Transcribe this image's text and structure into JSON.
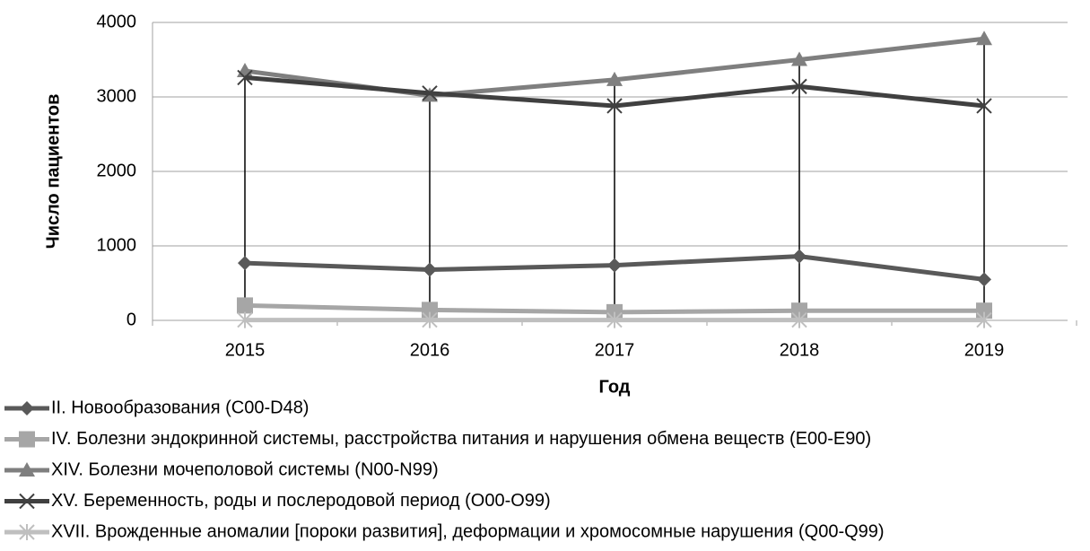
{
  "chart_data": {
    "type": "line",
    "x_label": "Год",
    "y_label": "Число пациентов",
    "categories": [
      "2015",
      "2016",
      "2017",
      "2018",
      "2019"
    ],
    "series": [
      {
        "name": "II. Новообразования (C00-D48)",
        "color": "#595959",
        "marker": "diamond",
        "values": [
          770,
          680,
          740,
          860,
          550
        ]
      },
      {
        "name": "IV. Болезни эндокринной системы, расстройства питания и нарушения обмена веществ (E00-E90)",
        "color": "#a6a6a6",
        "marker": "square",
        "values": [
          200,
          140,
          110,
          130,
          130
        ]
      },
      {
        "name": "XIV. Болезни мочеполовой системы (N00-N99)",
        "color": "#7f7f7f",
        "marker": "triangle",
        "values": [
          3350,
          3020,
          3230,
          3500,
          3780
        ]
      },
      {
        "name": "XV. Беременность, роды и послеродовой период (O00-O99)",
        "color": "#404040",
        "marker": "x",
        "values": [
          3260,
          3050,
          2880,
          3140,
          2880
        ]
      },
      {
        "name": "XVII. Врожденные аномалии [пороки развития], деформации и хромосомные нарушения (Q00-Q99)",
        "color": "#bfbfbf",
        "marker": "star",
        "values": [
          5,
          5,
          5,
          5,
          5
        ]
      }
    ],
    "ylim": [
      0,
      4000
    ],
    "yticks": [
      0,
      1000,
      2000,
      3000,
      4000
    ],
    "grid": true,
    "drop_lines": true,
    "legend": "bottom"
  }
}
